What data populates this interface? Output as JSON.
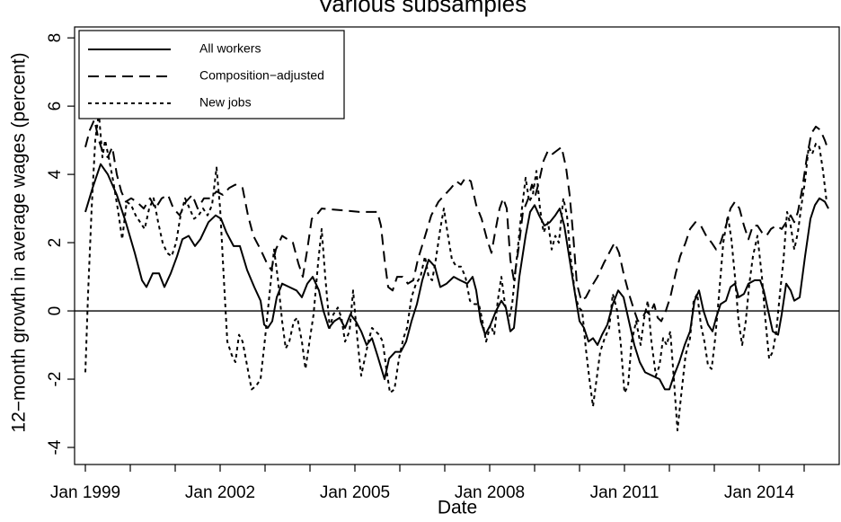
{
  "chart_data": {
    "type": "line",
    "title": "Various subsamples",
    "x_label": "Date",
    "y_label": "12−month growth in average wages (percent)",
    "xlim": [
      1998.76,
      2015.78
    ],
    "ylim": [
      -4.5,
      8.32
    ],
    "xticks": [
      {
        "value": 1999,
        "label": "Jan 1999"
      },
      {
        "value": 2000,
        "label": null
      },
      {
        "value": 2001,
        "label": null
      },
      {
        "value": 2002,
        "label": "Jan 2002"
      },
      {
        "value": 2003,
        "label": null
      },
      {
        "value": 2004,
        "label": null
      },
      {
        "value": 2005,
        "label": "Jan 2005"
      },
      {
        "value": 2006,
        "label": null
      },
      {
        "value": 2007,
        "label": null
      },
      {
        "value": 2008,
        "label": "Jan 2008"
      },
      {
        "value": 2009,
        "label": null
      },
      {
        "value": 2010,
        "label": null
      },
      {
        "value": 2011,
        "label": "Jan 2011"
      },
      {
        "value": 2012,
        "label": null
      },
      {
        "value": 2013,
        "label": null
      },
      {
        "value": 2014,
        "label": "Jan 2014"
      },
      {
        "value": 2015,
        "label": null
      }
    ],
    "yticks": [
      -4,
      -2,
      0,
      2,
      4,
      6,
      8
    ],
    "hline": 0,
    "legend": "top-left",
    "series": [
      {
        "name": "All workers",
        "color": "#000000",
        "dash": "solid",
        "x": [
          1999.0,
          1999.16,
          1999.34,
          1999.5,
          1999.7,
          1999.9,
          2000.1,
          2000.26,
          2000.36,
          2000.5,
          2000.64,
          2000.76,
          2000.9,
          2001.04,
          2001.16,
          2001.3,
          2001.44,
          2001.56,
          2001.74,
          2001.9,
          2002.02,
          2002.14,
          2002.3,
          2002.44,
          2002.6,
          2002.76,
          2002.9,
          2002.98,
          2003.06,
          2003.16,
          2003.26,
          2003.38,
          2003.54,
          2003.7,
          2003.82,
          2003.94,
          2004.06,
          2004.2,
          2004.3,
          2004.42,
          2004.54,
          2004.66,
          2004.78,
          2004.9,
          2005.02,
          2005.14,
          2005.26,
          2005.38,
          2005.5,
          2005.66,
          2005.76,
          2005.9,
          2006.02,
          2006.14,
          2006.26,
          2006.38,
          2006.5,
          2006.64,
          2006.78,
          2006.9,
          2007.04,
          2007.2,
          2007.34,
          2007.5,
          2007.62,
          2007.7,
          2007.8,
          2007.9,
          2008.02,
          2008.14,
          2008.26,
          2008.36,
          2008.46,
          2008.54,
          2008.66,
          2008.8,
          2008.9,
          2009.0,
          2009.1,
          2009.22,
          2009.34,
          2009.46,
          2009.56,
          2009.66,
          2009.78,
          2009.9,
          2010.0,
          2010.1,
          2010.2,
          2010.3,
          2010.4,
          2010.5,
          2010.62,
          2010.74,
          2010.86,
          2010.98,
          2011.1,
          2011.22,
          2011.34,
          2011.46,
          2011.62,
          2011.78,
          2011.9,
          2012.0,
          2012.1,
          2012.22,
          2012.34,
          2012.46,
          2012.56,
          2012.66,
          2012.76,
          2012.86,
          2012.96,
          2013.04,
          2013.14,
          2013.26,
          2013.36,
          2013.46,
          2013.54,
          2013.66,
          2013.76,
          2013.9,
          2014.02,
          2014.1,
          2014.2,
          2014.3,
          2014.42,
          2014.5,
          2014.6,
          2014.7,
          2014.78,
          2014.9,
          2015.02,
          2015.14,
          2015.24,
          2015.34,
          2015.46,
          2015.54
        ],
        "values": [
          2.9,
          3.6,
          4.3,
          4.0,
          3.4,
          2.6,
          1.7,
          0.9,
          0.7,
          1.1,
          1.1,
          0.7,
          1.1,
          1.6,
          2.1,
          2.2,
          1.9,
          2.1,
          2.6,
          2.8,
          2.7,
          2.3,
          1.9,
          1.9,
          1.2,
          0.7,
          0.3,
          -0.4,
          -0.5,
          -0.3,
          0.4,
          0.8,
          0.7,
          0.6,
          0.4,
          0.8,
          1.0,
          0.6,
          0.0,
          -0.5,
          -0.3,
          -0.2,
          -0.5,
          -0.1,
          -0.3,
          -0.6,
          -1.0,
          -0.8,
          -1.3,
          -2.0,
          -1.4,
          -1.2,
          -1.2,
          -0.9,
          -0.3,
          0.2,
          0.9,
          1.5,
          1.3,
          0.7,
          0.8,
          1.0,
          0.9,
          0.8,
          1.0,
          0.6,
          -0.3,
          -0.7,
          -0.4,
          0.0,
          0.3,
          0.1,
          -0.6,
          -0.5,
          1.0,
          2.2,
          2.9,
          3.1,
          2.8,
          2.5,
          2.6,
          2.8,
          3.0,
          2.5,
          1.5,
          0.5,
          -0.3,
          -0.5,
          -0.9,
          -0.8,
          -1.0,
          -0.7,
          -0.4,
          0.2,
          0.6,
          0.4,
          -0.3,
          -1.0,
          -1.5,
          -1.8,
          -1.9,
          -2.0,
          -2.3,
          -2.3,
          -1.9,
          -1.5,
          -1.0,
          -0.6,
          0.3,
          0.6,
          0.0,
          -0.4,
          -0.6,
          -0.2,
          0.2,
          0.3,
          0.7,
          0.8,
          0.4,
          0.5,
          0.8,
          0.9,
          0.9,
          0.6,
          0.0,
          -0.6,
          -0.7,
          -0.1,
          0.8,
          0.6,
          0.3,
          0.4,
          1.6,
          2.7,
          3.1,
          3.3,
          3.2,
          3.0
        ]
      },
      {
        "name": "Composition−adjusted",
        "color": "#000000",
        "dash": "dashed",
        "x": [
          1999.0,
          1999.1,
          1999.2,
          1999.3,
          1999.4,
          1999.5,
          1999.6,
          1999.7,
          1999.8,
          1999.9,
          2000.02,
          2000.14,
          2000.3,
          2000.44,
          2000.56,
          2000.7,
          2000.84,
          2000.96,
          2001.1,
          2001.24,
          2001.38,
          2001.5,
          2001.64,
          2001.78,
          2001.92,
          2002.06,
          2002.2,
          2002.34,
          2002.5,
          2002.62,
          2002.74,
          2002.9,
          2003.04,
          2003.14,
          2003.24,
          2003.38,
          2003.5,
          2003.62,
          2003.74,
          2003.84,
          2003.94,
          2004.04,
          2004.14,
          2004.26,
          2004.7,
          2005.1,
          2005.5,
          2005.58,
          2005.66,
          2005.74,
          2005.84,
          2005.94,
          2006.06,
          2006.18,
          2006.3,
          2006.4,
          2006.54,
          2006.7,
          2006.86,
          2007.0,
          2007.14,
          2007.26,
          2007.36,
          2007.46,
          2007.58,
          2007.7,
          2007.82,
          2007.94,
          2008.04,
          2008.12,
          2008.22,
          2008.3,
          2008.38,
          2008.46,
          2008.54,
          2008.64,
          2008.74,
          2008.86,
          2008.94,
          2009.02,
          2009.1,
          2009.2,
          2009.3,
          2009.4,
          2009.5,
          2009.6,
          2009.7,
          2009.78,
          2009.86,
          2009.94,
          2010.04,
          2010.14,
          2010.26,
          2010.4,
          2010.54,
          2010.66,
          2010.78,
          2010.88,
          2010.98,
          2011.1,
          2011.22,
          2011.3,
          2011.4,
          2011.48,
          2011.56,
          2011.66,
          2011.74,
          2011.82,
          2011.92,
          2012.02,
          2012.14,
          2012.24,
          2012.36,
          2012.46,
          2012.58,
          2012.7,
          2012.82,
          2012.94,
          2013.04,
          2013.14,
          2013.26,
          2013.36,
          2013.46,
          2013.56,
          2013.66,
          2013.76,
          2013.86,
          2013.96,
          2014.06,
          2014.16,
          2014.26,
          2014.38,
          2014.5,
          2014.6,
          2014.7,
          2014.78,
          2014.86,
          2014.96,
          2015.06,
          2015.16,
          2015.26,
          2015.36,
          2015.46,
          2015.54
        ],
        "values": [
          4.8,
          5.3,
          5.6,
          5.0,
          4.6,
          4.5,
          4.8,
          4.0,
          3.5,
          3.2,
          3.3,
          3.2,
          3.0,
          3.3,
          3.0,
          3.3,
          3.4,
          3.0,
          2.8,
          3.2,
          3.4,
          3.0,
          3.3,
          3.3,
          3.5,
          3.4,
          3.6,
          3.7,
          3.6,
          2.8,
          2.2,
          1.8,
          1.4,
          1.2,
          1.8,
          2.2,
          2.1,
          2.0,
          1.4,
          1.0,
          1.8,
          2.7,
          2.8,
          3.0,
          2.95,
          2.9,
          2.9,
          2.5,
          1.5,
          0.7,
          0.6,
          1.0,
          1.0,
          0.8,
          0.9,
          1.5,
          2.1,
          2.8,
          3.2,
          3.4,
          3.6,
          3.8,
          3.7,
          3.9,
          3.8,
          3.1,
          2.7,
          2.1,
          1.7,
          2.3,
          3.0,
          3.3,
          3.0,
          1.5,
          0.9,
          1.8,
          2.9,
          3.3,
          3.7,
          3.4,
          3.8,
          4.4,
          4.7,
          4.6,
          4.7,
          4.8,
          4.2,
          3.4,
          2.2,
          0.8,
          0.3,
          0.4,
          0.7,
          1.0,
          1.4,
          1.7,
          2.0,
          1.7,
          1.1,
          0.5,
          0.0,
          -0.3,
          -0.2,
          0.0,
          -0.1,
          0.2,
          -0.2,
          -0.3,
          0.0,
          0.4,
          1.1,
          1.6,
          2.0,
          2.4,
          2.6,
          2.5,
          2.2,
          2.0,
          1.8,
          2.0,
          2.5,
          3.0,
          3.2,
          3.0,
          2.5,
          2.1,
          2.5,
          2.5,
          2.3,
          2.2,
          2.4,
          2.5,
          2.4,
          2.6,
          2.8,
          2.6,
          2.9,
          3.6,
          4.5,
          5.2,
          5.4,
          5.3,
          5.0,
          4.7
        ]
      },
      {
        "name": "New jobs",
        "color": "#000000",
        "dash": "dotted",
        "x": [
          1999.0,
          1999.06,
          1999.14,
          1999.22,
          1999.3,
          1999.38,
          1999.44,
          1999.52,
          1999.62,
          1999.72,
          1999.82,
          1999.92,
          2000.02,
          2000.12,
          2000.22,
          2000.32,
          2000.42,
          2000.52,
          2000.62,
          2000.72,
          2000.82,
          2000.92,
          2001.02,
          2001.12,
          2001.22,
          2001.32,
          2001.42,
          2001.52,
          2001.62,
          2001.72,
          2001.82,
          2001.92,
          2002.0,
          2002.08,
          2002.16,
          2002.26,
          2002.34,
          2002.42,
          2002.5,
          2002.6,
          2002.7,
          2002.8,
          2002.9,
          2003.0,
          2003.1,
          2003.2,
          2003.28,
          2003.38,
          2003.46,
          2003.54,
          2003.64,
          2003.72,
          2003.82,
          2003.9,
          2004.0,
          2004.08,
          2004.18,
          2004.26,
          2004.34,
          2004.44,
          2004.52,
          2004.62,
          2004.7,
          2004.78,
          2004.88,
          2004.96,
          2005.06,
          2005.14,
          2005.22,
          2005.3,
          2005.38,
          2005.46,
          2005.54,
          2005.62,
          2005.7,
          2005.78,
          2005.88,
          2005.98,
          2006.08,
          2006.16,
          2006.26,
          2006.36,
          2006.46,
          2006.56,
          2006.64,
          2006.72,
          2006.8,
          2006.9,
          2006.98,
          2007.06,
          2007.16,
          2007.26,
          2007.36,
          2007.46,
          2007.56,
          2007.66,
          2007.76,
          2007.84,
          2007.92,
          2008.02,
          2008.1,
          2008.18,
          2008.26,
          2008.34,
          2008.42,
          2008.5,
          2008.6,
          2008.7,
          2008.8,
          2008.88,
          2008.96,
          2009.04,
          2009.12,
          2009.2,
          2009.3,
          2009.38,
          2009.46,
          2009.54,
          2009.64,
          2009.72,
          2009.8,
          2009.9,
          2009.98,
          2010.06,
          2010.14,
          2010.22,
          2010.3,
          2010.38,
          2010.46,
          2010.56,
          2010.66,
          2010.74,
          2010.84,
          2010.92,
          2011.0,
          2011.08,
          2011.16,
          2011.26,
          2011.36,
          2011.44,
          2011.52,
          2011.6,
          2011.7,
          2011.78,
          2011.86,
          2011.94,
          2012.02,
          2012.1,
          2012.18,
          2012.26,
          2012.36,
          2012.46,
          2012.54,
          2012.62,
          2012.7,
          2012.78,
          2012.86,
          2012.94,
          2013.02,
          2013.1,
          2013.2,
          2013.3,
          2013.38,
          2013.46,
          2013.54,
          2013.62,
          2013.7,
          2013.78,
          2013.86,
          2013.96,
          2014.06,
          2014.14,
          2014.22,
          2014.3,
          2014.38,
          2014.46,
          2014.54,
          2014.62,
          2014.7,
          2014.78,
          2014.86,
          2014.94,
          2015.02,
          2015.1,
          2015.18,
          2015.26,
          2015.34,
          2015.42,
          2015.5
        ],
        "values": [
          -1.8,
          0.5,
          3.0,
          5.0,
          5.8,
          4.5,
          5.0,
          4.5,
          3.8,
          3.0,
          2.1,
          3.2,
          3.1,
          2.8,
          2.6,
          2.4,
          3.0,
          3.3,
          2.6,
          2.0,
          1.7,
          1.6,
          2.0,
          2.8,
          3.3,
          3.0,
          2.7,
          2.8,
          3.0,
          2.8,
          3.1,
          4.2,
          3.0,
          1.0,
          -0.9,
          -1.3,
          -1.5,
          -0.7,
          -0.9,
          -1.6,
          -2.3,
          -2.2,
          -2.0,
          -0.8,
          0.5,
          1.8,
          1.0,
          -0.3,
          -1.1,
          -0.9,
          -0.3,
          -0.2,
          -0.9,
          -1.7,
          -0.8,
          -0.1,
          1.4,
          2.4,
          1.0,
          -0.5,
          -0.1,
          0.1,
          -0.2,
          -0.9,
          -0.6,
          0.6,
          -0.9,
          -1.9,
          -1.4,
          -0.9,
          -0.5,
          -0.6,
          -0.7,
          -0.9,
          -1.7,
          -2.4,
          -2.3,
          -1.4,
          -0.8,
          -0.5,
          0.4,
          0.8,
          1.0,
          1.6,
          1.0,
          0.9,
          1.5,
          2.4,
          3.0,
          2.3,
          1.5,
          1.3,
          1.3,
          1.0,
          0.3,
          0.2,
          0.2,
          -0.3,
          -0.9,
          -0.4,
          -0.7,
          0.3,
          1.0,
          0.2,
          -0.3,
          0.2,
          1.5,
          2.8,
          3.9,
          3.2,
          3.4,
          4.1,
          3.0,
          2.3,
          2.6,
          1.8,
          2.2,
          2.0,
          3.3,
          2.8,
          1.6,
          0.5,
          0.1,
          0.0,
          -1.1,
          -2.0,
          -2.8,
          -2.0,
          -1.2,
          -0.8,
          -0.5,
          0.5,
          0.0,
          -1.0,
          -2.4,
          -2.2,
          -0.9,
          -0.3,
          -1.0,
          -0.2,
          0.3,
          -0.9,
          -1.9,
          -1.6,
          -0.8,
          -1.0,
          -0.6,
          -2.0,
          -3.5,
          -2.5,
          -1.3,
          -0.8,
          0.3,
          0.5,
          -0.4,
          -0.9,
          -1.6,
          -1.7,
          -0.8,
          0.4,
          2.0,
          2.8,
          2.1,
          1.0,
          -0.3,
          -1.0,
          -0.3,
          0.8,
          1.6,
          2.2,
          1.0,
          -0.3,
          -1.4,
          -1.2,
          -0.6,
          0.5,
          1.5,
          2.9,
          2.5,
          1.8,
          2.3,
          3.1,
          3.8,
          4.8,
          4.6,
          4.9,
          4.8,
          4.1,
          3.2
        ]
      }
    ]
  }
}
